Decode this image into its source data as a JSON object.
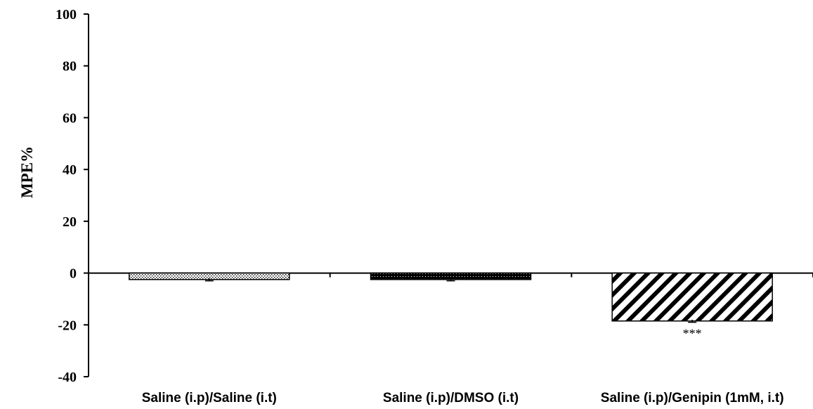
{
  "chart_data": {
    "type": "bar",
    "ylabel": "MPE%",
    "ylim": [
      -40,
      100
    ],
    "yticks": [
      "100",
      "80",
      "60",
      "40",
      "20",
      "0",
      "-20",
      "-40"
    ],
    "ytick_values": [
      100,
      80,
      60,
      40,
      20,
      0,
      -20,
      -40
    ],
    "categories": [
      "Saline (i.p)/Saline (i.t)",
      "Saline (i.p)/DMSO (i.t)",
      "Saline (i.p)/Genipin (1mM, i.t)"
    ],
    "values": [
      -2.5,
      -2.5,
      -18.5
    ],
    "errors": [
      0.5,
      0.5,
      0.5
    ],
    "fill_patterns": [
      "dotted",
      "dense-black",
      "diagonal-stripes"
    ],
    "annotations": [
      "",
      "",
      "***"
    ],
    "grid": false,
    "legend": "none"
  }
}
